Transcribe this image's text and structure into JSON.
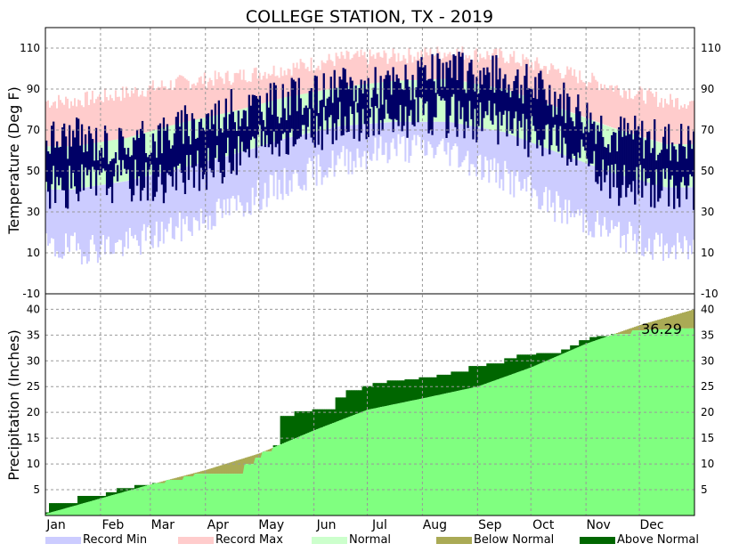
{
  "chart_data": {
    "title": "COLLEGE STATION, TX - 2019",
    "temperature_panel": {
      "type": "area",
      "ylabel": "Temperature (Deg F)",
      "ylim": [
        -10,
        120
      ],
      "yticks": [
        -10,
        10,
        30,
        50,
        70,
        90,
        110
      ],
      "grid": true,
      "normal_high_monthly": [
        62,
        66,
        73,
        79,
        86,
        91,
        94,
        95,
        90,
        81,
        71,
        63
      ],
      "normal_low_monthly": [
        41,
        45,
        51,
        58,
        66,
        72,
        74,
        74,
        69,
        59,
        49,
        42
      ],
      "record_max_monthly": [
        84,
        88,
        93,
        96,
        100,
        105,
        106,
        108,
        106,
        99,
        91,
        84
      ],
      "record_min_monthly": [
        12,
        14,
        22,
        32,
        44,
        55,
        62,
        60,
        47,
        32,
        20,
        12
      ],
      "observed_high_monthly": [
        66,
        62,
        70,
        80,
        84,
        90,
        92,
        98,
        96,
        86,
        68,
        64
      ],
      "observed_low_monthly": [
        42,
        46,
        45,
        57,
        67,
        73,
        76,
        77,
        72,
        62,
        44,
        42
      ]
    },
    "precipitation_panel": {
      "type": "area",
      "ylabel": "Precipitation (Inches)",
      "ylim": [
        0,
        43
      ],
      "yticks": [
        5,
        10,
        15,
        20,
        25,
        30,
        35,
        40
      ],
      "grid": true,
      "normal_cumulative_day": [
        0,
        31,
        59,
        90,
        120,
        151,
        181,
        212,
        243,
        273,
        304,
        334,
        365
      ],
      "normal_cumulative": [
        0.3,
        3.3,
        6.0,
        8.8,
        12.0,
        16.5,
        20.5,
        22.7,
        25.0,
        28.7,
        33.3,
        36.9,
        40.0
      ],
      "observed_cumulative_steps": [
        [
          0,
          0.6
        ],
        [
          2,
          2.4
        ],
        [
          18,
          3.8
        ],
        [
          34,
          4.5
        ],
        [
          40,
          5.3
        ],
        [
          50,
          5.9
        ],
        [
          60,
          6.3
        ],
        [
          68,
          6.9
        ],
        [
          78,
          7.6
        ],
        [
          84,
          8.1
        ],
        [
          112,
          10.0
        ],
        [
          118,
          11.2
        ],
        [
          122,
          12.4
        ],
        [
          128,
          13.6
        ],
        [
          132,
          19.3
        ],
        [
          140,
          20.2
        ],
        [
          150,
          20.6
        ],
        [
          163,
          22.9
        ],
        [
          169,
          24.3
        ],
        [
          178,
          25.1
        ],
        [
          184,
          25.7
        ],
        [
          192,
          26.2
        ],
        [
          202,
          26.4
        ],
        [
          210,
          26.8
        ],
        [
          220,
          27.3
        ],
        [
          228,
          27.9
        ],
        [
          238,
          29.0
        ],
        [
          248,
          29.5
        ],
        [
          258,
          30.5
        ],
        [
          265,
          31.2
        ],
        [
          276,
          31.5
        ],
        [
          290,
          32.2
        ],
        [
          295,
          33.0
        ],
        [
          300,
          34.0
        ],
        [
          306,
          34.6
        ],
        [
          310,
          34.8
        ],
        [
          318,
          35.2
        ],
        [
          330,
          35.9
        ],
        [
          338,
          36.1
        ],
        [
          352,
          36.29
        ],
        [
          365,
          36.29
        ]
      ],
      "annotation": "36.29"
    },
    "months": [
      "Jan",
      "Feb",
      "Mar",
      "Apr",
      "May",
      "Jun",
      "Jul",
      "Aug",
      "Sep",
      "Oct",
      "Nov",
      "Dec"
    ],
    "legend": [
      {
        "label": "Record Min",
        "color": "#ccccff"
      },
      {
        "label": "Record Max",
        "color": "#ffcccc"
      },
      {
        "label": "Normal",
        "color": "#ccffcc"
      },
      {
        "label": "Below Normal",
        "color": "#aaaa55"
      },
      {
        "label": "Above Normal",
        "color": "#006600"
      }
    ],
    "colors": {
      "record_min": "#ccccff",
      "record_max": "#ffcccc",
      "normal": "#ccffcc",
      "observed": "#000066",
      "precip_normal": "#80ff80",
      "precip_below": "#aaaa55",
      "precip_above": "#006600",
      "grid": "#999999"
    }
  }
}
